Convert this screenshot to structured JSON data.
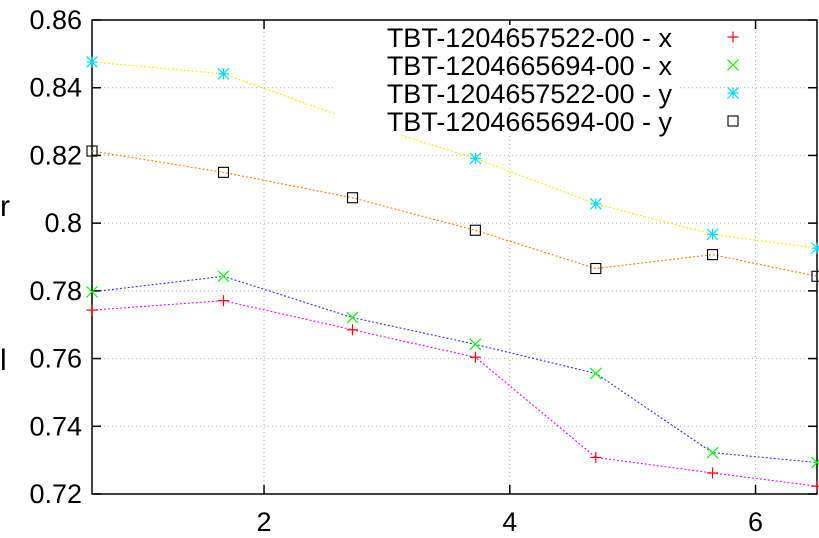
{
  "chart_data": {
    "type": "line",
    "title": "",
    "xlabel": "",
    "ylabel": "",
    "xlim": [
      0.6,
      6.5
    ],
    "ylim": [
      0.72,
      0.86
    ],
    "xticks": [
      2,
      4,
      6
    ],
    "yticks": [
      0.72,
      0.74,
      0.76,
      0.78,
      0.8,
      0.82,
      0.84,
      0.86
    ],
    "ytick_labels": [
      "0.72",
      "0.74",
      "0.76",
      "0.78",
      "0.8",
      "0.82",
      "0.84",
      "0.86"
    ],
    "grid": true,
    "legend_position": "top-right",
    "edge_glyphs": [
      "r",
      "l"
    ],
    "series": [
      {
        "name": "TBT-1204657522-00 - x",
        "marker": "plus",
        "color": "#ff0000",
        "line_color": "#ff00ff",
        "x": [
          0.6,
          1.67,
          2.72,
          3.72,
          4.7,
          5.65,
          6.5
        ],
        "y": [
          0.7743,
          0.7771,
          0.7685,
          0.7604,
          0.7308,
          0.7262,
          0.7223
        ]
      },
      {
        "name": "TBT-1204665694-00 - x",
        "marker": "x",
        "color": "#00ff00",
        "line_color": "#3030ff",
        "x": [
          0.6,
          1.67,
          2.72,
          3.72,
          4.7,
          5.65,
          6.5
        ],
        "y": [
          0.7797,
          0.7843,
          0.7721,
          0.7642,
          0.7556,
          0.7322,
          0.7293
        ]
      },
      {
        "name": "TBT-1204657522-00 - y",
        "marker": "star",
        "color": "#00d8ff",
        "line_color": "#f0f000",
        "x": [
          0.6,
          1.67,
          2.72,
          3.72,
          4.7,
          5.65,
          6.5
        ],
        "y": [
          0.8476,
          0.8441,
          0.8304,
          0.8191,
          0.8057,
          0.7967,
          0.7926
        ]
      },
      {
        "name": "TBT-1204665694-00 - y",
        "marker": "square",
        "color": "#000000",
        "line_color": "#ff7f00",
        "x": [
          0.6,
          1.67,
          2.72,
          3.72,
          4.7,
          5.65,
          6.5
        ],
        "y": [
          0.8213,
          0.815,
          0.8075,
          0.7979,
          0.7866,
          0.7907,
          0.7843
        ]
      }
    ]
  }
}
